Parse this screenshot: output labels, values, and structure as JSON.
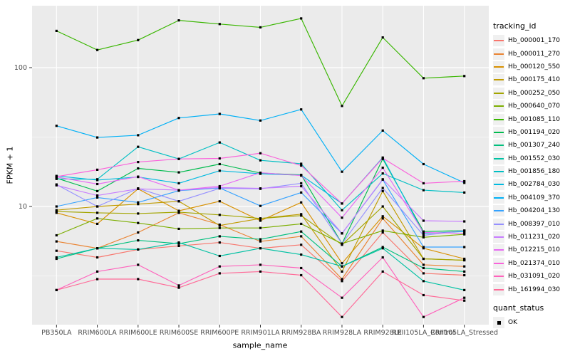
{
  "colors": {
    "panel_bg": "#EBEBEB",
    "grid": "#FFFFFF",
    "key_bg": "#F0F0F0",
    "tick_text": "#4D4D4D",
    "tick_mark": "#333333",
    "point": "#000000"
  },
  "axes": {
    "x_label": "sample_name",
    "y_label": "FPKM + 1"
  },
  "legend": {
    "tracking_title": "tracking_id",
    "quant_title": "quant_status",
    "quant_items": [
      {
        "label": "OK"
      }
    ]
  },
  "chart_data": {
    "type": "line",
    "title": "",
    "xlabel": "sample_name",
    "ylabel": "FPKM + 1",
    "y_scale": "log10",
    "ylim": [
      1.41,
      279
    ],
    "y_ticks": [
      100,
      10
    ],
    "y_tick_labels": [
      "100",
      "10"
    ],
    "y_minor_breaks": [
      31.62,
      3.162
    ],
    "grid": true,
    "legend_position": "right",
    "point_shape": "filled-square",
    "categories": [
      "PB350LA",
      "RRIM600LA",
      "RRIM600LE",
      "RRIM600SE",
      "RRIM600PE",
      "RRIM901LA",
      "RRIM928BA",
      "RRIM928LA",
      "RRIM928LE",
      "RRII105LA_Control",
      "RRII105LA_Stressed"
    ],
    "series": [
      {
        "tracking_id": "Hb_000001_170",
        "color": "#F8766D",
        "quant_status": "OK",
        "values": [
          4.8,
          4.3,
          4.9,
          5.2,
          5.5,
          5.0,
          5.3,
          2.9,
          6.5,
          3.3,
          3.2
        ]
      },
      {
        "tracking_id": "Hb_000011_270",
        "color": "#EA8331",
        "quant_status": "OK",
        "values": [
          5.6,
          5.0,
          6.5,
          9.0,
          7.4,
          5.6,
          6.1,
          3.0,
          8.2,
          3.8,
          3.7
        ]
      },
      {
        "tracking_id": "Hb_000120_550",
        "color": "#D89000",
        "quant_status": "OK",
        "values": [
          9.0,
          7.5,
          13.4,
          9.3,
          10.9,
          7.9,
          10.7,
          3.9,
          8.5,
          5.0,
          4.2
        ]
      },
      {
        "tracking_id": "Hb_000175_410",
        "color": "#C09B00",
        "quant_status": "OK",
        "values": [
          9.4,
          10.0,
          10.4,
          10.9,
          7.3,
          8.2,
          8.8,
          3.4,
          12.9,
          4.2,
          4.1
        ]
      },
      {
        "tracking_id": "Hb_000252_050",
        "color": "#A3A500",
        "quant_status": "OK",
        "values": [
          9.2,
          9.0,
          8.9,
          9.1,
          8.7,
          8.2,
          8.6,
          5.3,
          10.0,
          4.2,
          4.1
        ]
      },
      {
        "tracking_id": "Hb_000640_070",
        "color": "#7CAE00",
        "quant_status": "OK",
        "values": [
          6.2,
          8.2,
          7.6,
          6.9,
          7.0,
          7.0,
          7.5,
          5.4,
          6.7,
          6.0,
          6.3
        ]
      },
      {
        "tracking_id": "Hb_001085_110",
        "color": "#39B600",
        "quant_status": "OK",
        "values": [
          184,
          134,
          158,
          219,
          206,
          195,
          226,
          53,
          165,
          84,
          87
        ]
      },
      {
        "tracking_id": "Hb_001194_020",
        "color": "#00BB4E",
        "quant_status": "OK",
        "values": [
          16.0,
          12.9,
          18.8,
          17.6,
          20.2,
          17.4,
          16.9,
          5.4,
          22.0,
          6.6,
          6.7
        ]
      },
      {
        "tracking_id": "Hb_001307_240",
        "color": "#00BF7D",
        "quant_status": "OK",
        "values": [
          4.2,
          5.0,
          5.7,
          5.4,
          6.1,
          5.8,
          6.6,
          3.7,
          5.1,
          3.6,
          3.4
        ]
      },
      {
        "tracking_id": "Hb_001552_030",
        "color": "#00C1A3",
        "quant_status": "OK",
        "values": [
          4.3,
          5.0,
          4.9,
          5.5,
          4.4,
          5.0,
          4.5,
          3.7,
          5.0,
          2.9,
          2.5
        ]
      },
      {
        "tracking_id": "Hb_001856_180",
        "color": "#00BFC4",
        "quant_status": "OK",
        "values": [
          15.8,
          15.7,
          26.9,
          22.0,
          28.9,
          21.5,
          20.3,
          9.4,
          17.3,
          13.1,
          12.6
        ]
      },
      {
        "tracking_id": "Hb_002784_030",
        "color": "#00BAE0",
        "quant_status": "OK",
        "values": [
          16.6,
          15.5,
          16.3,
          14.7,
          18.1,
          17.2,
          16.8,
          10.5,
          22.5,
          6.4,
          6.6
        ]
      },
      {
        "tracking_id": "Hb_004109_370",
        "color": "#00B0F6",
        "quant_status": "OK",
        "values": [
          38.1,
          31.4,
          32.6,
          43.4,
          46.4,
          41.6,
          50.0,
          17.8,
          35.2,
          20.2,
          14.8
        ]
      },
      {
        "tracking_id": "Hb_004204_130",
        "color": "#35A2FF",
        "quant_status": "OK",
        "values": [
          10.0,
          11.6,
          10.7,
          13.0,
          13.6,
          10.1,
          12.6,
          6.4,
          15.6,
          5.1,
          5.1
        ]
      },
      {
        "tracking_id": "Hb_008397_010",
        "color": "#9590FF",
        "quant_status": "OK",
        "values": [
          14.4,
          10.0,
          13.5,
          10.9,
          13.5,
          13.4,
          14.7,
          5.4,
          13.6,
          6.2,
          6.7
        ]
      },
      {
        "tracking_id": "Hb_011231_020",
        "color": "#C77CFF",
        "quant_status": "OK",
        "values": [
          14.2,
          12.0,
          13.4,
          13.1,
          13.7,
          13.5,
          14.0,
          6.4,
          15.7,
          7.9,
          7.8
        ]
      },
      {
        "tracking_id": "Hb_012215_010",
        "color": "#E76BF3",
        "quant_status": "OK",
        "values": [
          16.3,
          14.5,
          16.4,
          13.1,
          14.0,
          17.5,
          16.7,
          8.3,
          19.0,
          6.5,
          6.4
        ]
      },
      {
        "tracking_id": "Hb_021374_010",
        "color": "#FA62DB",
        "quant_status": "OK",
        "values": [
          16.4,
          18.4,
          20.9,
          22.0,
          22.2,
          24.2,
          19.7,
          10.5,
          22.3,
          14.7,
          15.2
        ]
      },
      {
        "tracking_id": "Hb_031091_020",
        "color": "#FF62BC",
        "quant_status": "OK",
        "values": [
          2.5,
          3.4,
          3.8,
          2.7,
          3.7,
          3.8,
          3.6,
          2.2,
          4.3,
          1.6,
          2.2
        ]
      },
      {
        "tracking_id": "Hb_161994_030",
        "color": "#FF6A98",
        "quant_status": "OK",
        "values": [
          2.5,
          3.0,
          3.0,
          2.6,
          3.3,
          3.4,
          3.2,
          1.6,
          3.4,
          2.3,
          2.1
        ]
      }
    ]
  }
}
